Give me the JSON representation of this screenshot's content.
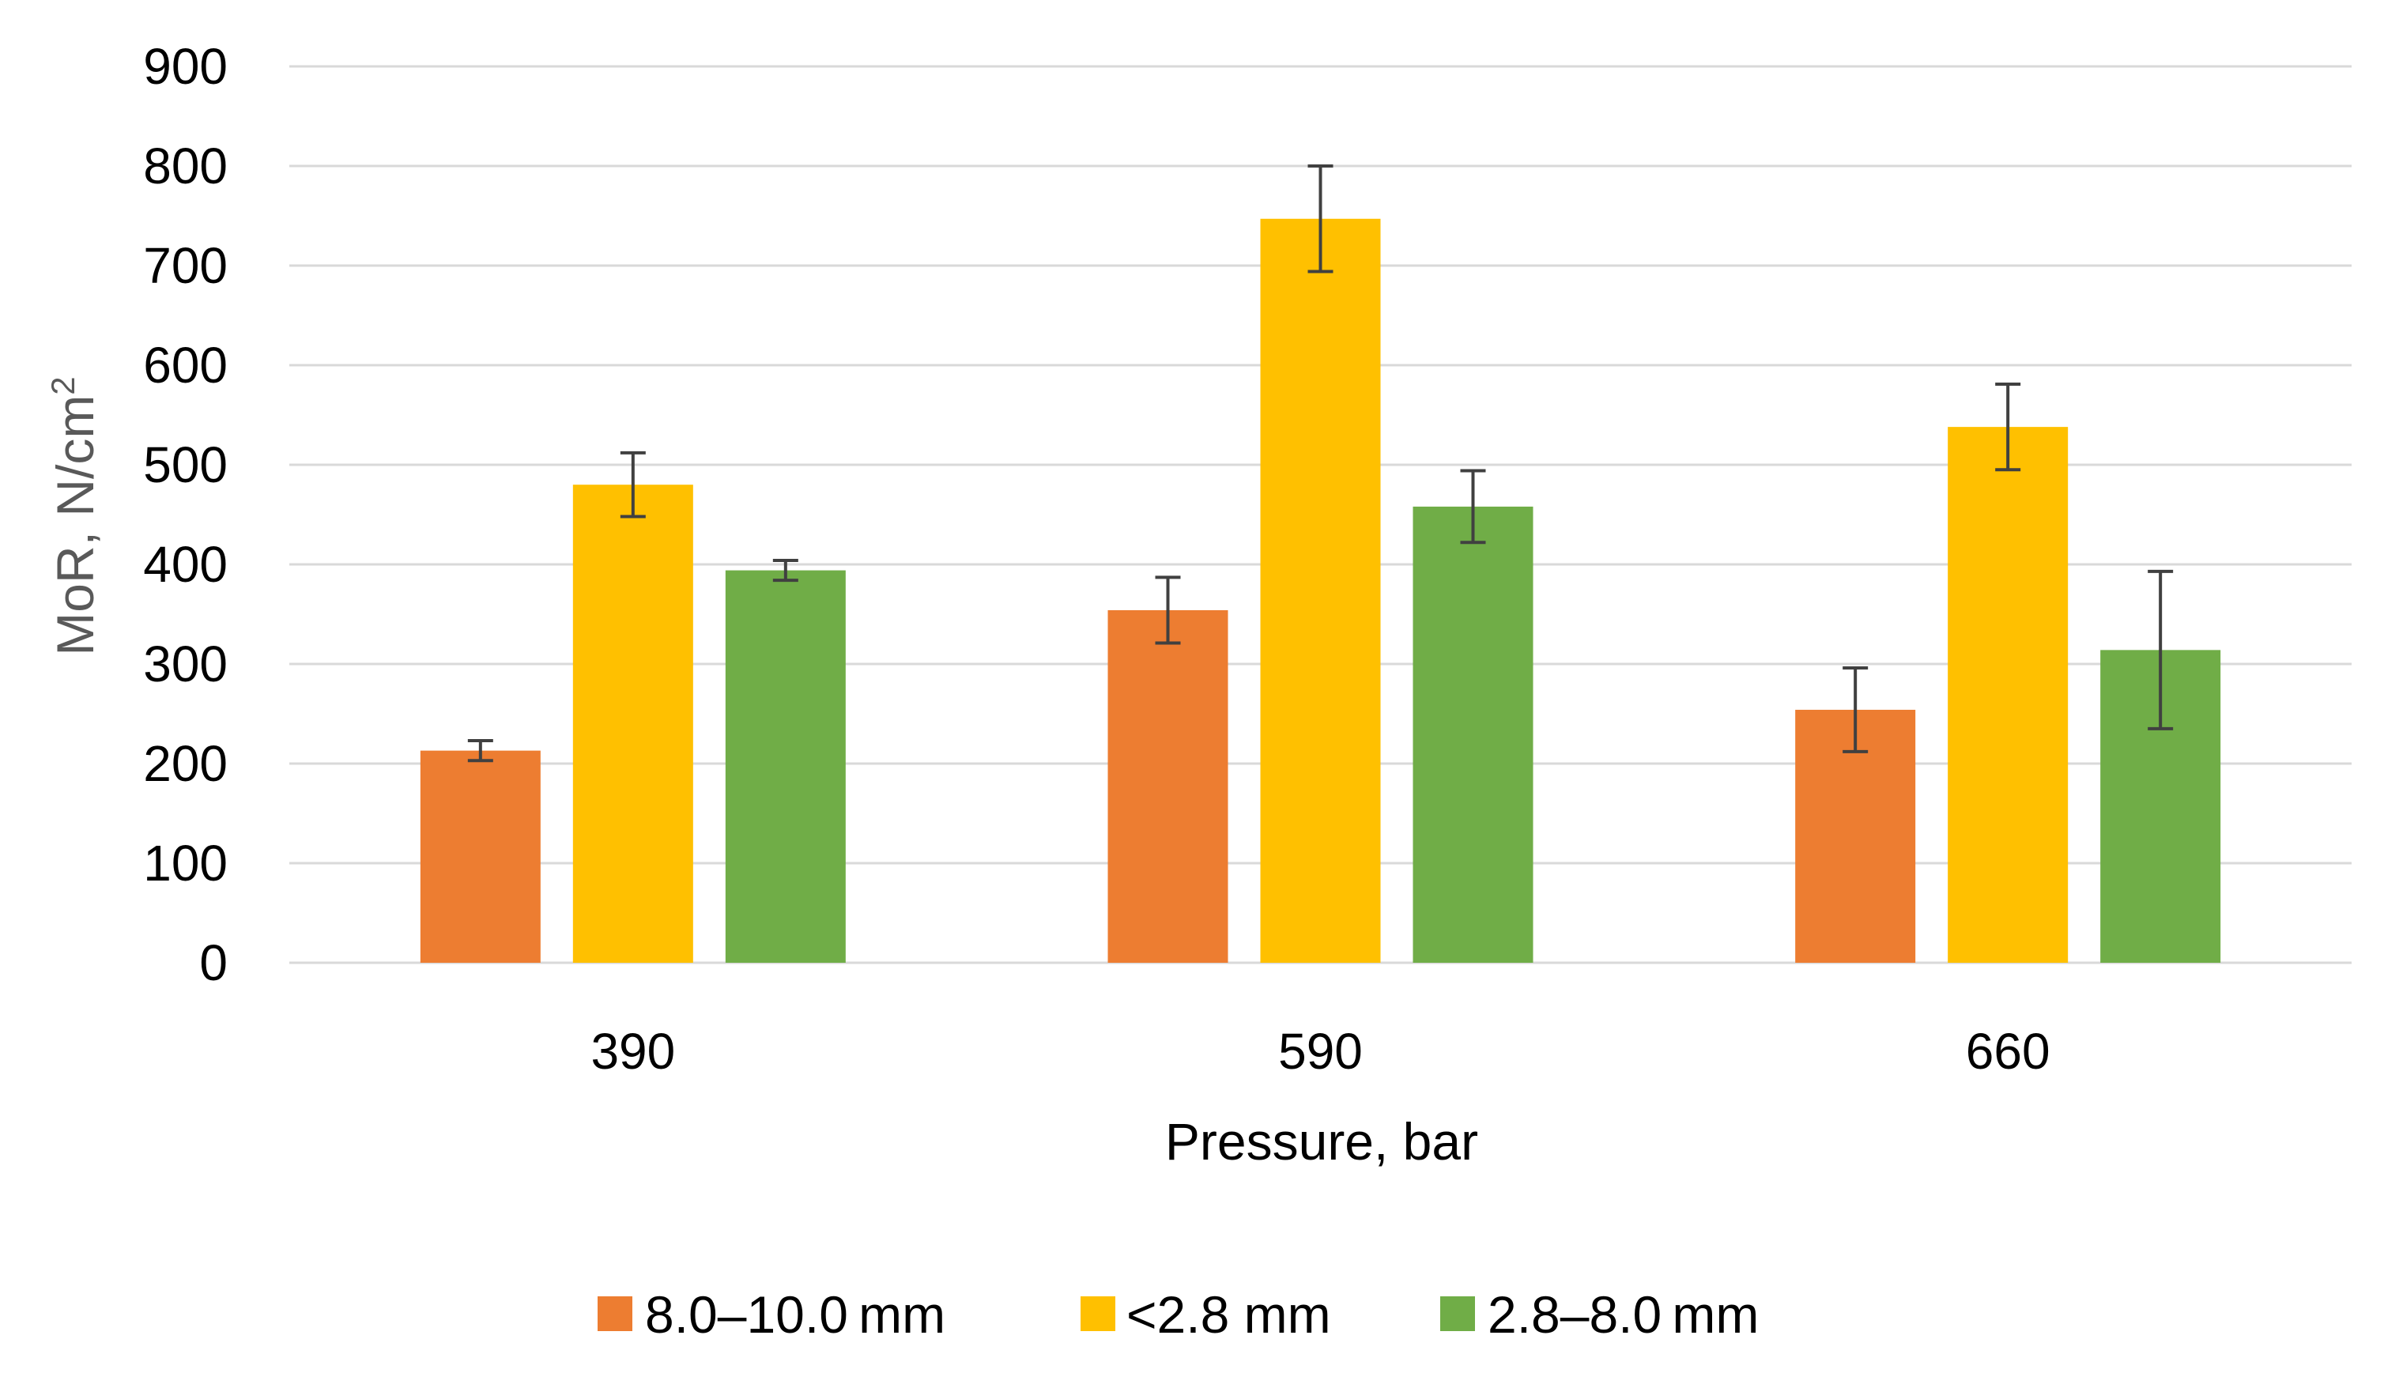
{
  "chart_data": {
    "type": "bar",
    "title": "",
    "xlabel": "Pressure, bar",
    "ylabel": "MoR, N/cm",
    "ylabel_superscript": "2",
    "ylim": [
      0,
      900
    ],
    "yticks": [
      0,
      100,
      200,
      300,
      400,
      500,
      600,
      700,
      800,
      900
    ],
    "grid": true,
    "legend_position": "bottom",
    "categories": [
      "390",
      "590",
      "660"
    ],
    "series": [
      {
        "name": "8.0–10.0 mm",
        "color": "#ED7D31",
        "values": [
          213,
          354,
          254
        ],
        "errors": [
          10,
          33,
          42
        ]
      },
      {
        "name": "<2.8 mm",
        "color": "#FFC000",
        "values": [
          480,
          747,
          538
        ],
        "errors": [
          32,
          53,
          43
        ]
      },
      {
        "name": "2.8–8.0 mm",
        "color": "#70AD47",
        "values": [
          394,
          458,
          314
        ],
        "errors": [
          10,
          36,
          79
        ]
      }
    ]
  }
}
